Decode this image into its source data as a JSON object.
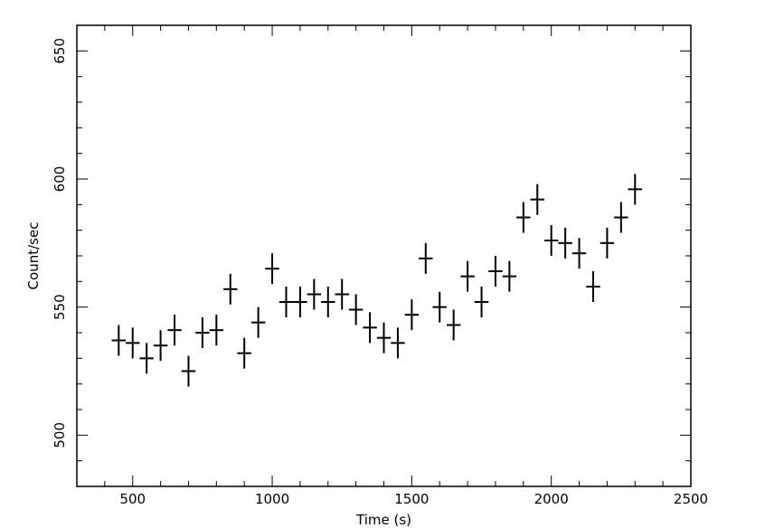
{
  "chart_data": {
    "type": "scatter",
    "title": "",
    "xlabel": "Time (s)",
    "ylabel": "Count/sec",
    "xlim": [
      300,
      2500
    ],
    "ylim": [
      480,
      660
    ],
    "x_ticks": [
      500,
      1000,
      1500,
      2000,
      2500
    ],
    "x_tick_labels": [
      "500",
      "1000",
      "1500",
      "2000",
      "2500"
    ],
    "y_ticks": [
      500,
      550,
      600,
      650
    ],
    "y_tick_labels": [
      "500",
      "550",
      "600",
      "650"
    ],
    "grid": false,
    "x_error": 25,
    "points": [
      {
        "x": 450,
        "y": 537,
        "yerr": 6
      },
      {
        "x": 500,
        "y": 536,
        "yerr": 6
      },
      {
        "x": 550,
        "y": 530,
        "yerr": 6
      },
      {
        "x": 600,
        "y": 535,
        "yerr": 6
      },
      {
        "x": 650,
        "y": 541,
        "yerr": 6
      },
      {
        "x": 700,
        "y": 525,
        "yerr": 6
      },
      {
        "x": 750,
        "y": 540,
        "yerr": 6
      },
      {
        "x": 800,
        "y": 541,
        "yerr": 6
      },
      {
        "x": 850,
        "y": 557,
        "yerr": 6
      },
      {
        "x": 900,
        "y": 532,
        "yerr": 6
      },
      {
        "x": 950,
        "y": 544,
        "yerr": 6
      },
      {
        "x": 1000,
        "y": 565,
        "yerr": 6
      },
      {
        "x": 1050,
        "y": 552,
        "yerr": 6
      },
      {
        "x": 1100,
        "y": 552,
        "yerr": 6
      },
      {
        "x": 1150,
        "y": 555,
        "yerr": 6
      },
      {
        "x": 1200,
        "y": 552,
        "yerr": 6
      },
      {
        "x": 1250,
        "y": 555,
        "yerr": 6
      },
      {
        "x": 1300,
        "y": 549,
        "yerr": 6
      },
      {
        "x": 1350,
        "y": 542,
        "yerr": 6
      },
      {
        "x": 1400,
        "y": 538,
        "yerr": 6
      },
      {
        "x": 1450,
        "y": 536,
        "yerr": 6
      },
      {
        "x": 1500,
        "y": 547,
        "yerr": 6
      },
      {
        "x": 1550,
        "y": 569,
        "yerr": 6
      },
      {
        "x": 1600,
        "y": 550,
        "yerr": 6
      },
      {
        "x": 1650,
        "y": 543,
        "yerr": 6
      },
      {
        "x": 1700,
        "y": 562,
        "yerr": 6
      },
      {
        "x": 1750,
        "y": 552,
        "yerr": 6
      },
      {
        "x": 1800,
        "y": 564,
        "yerr": 6
      },
      {
        "x": 1850,
        "y": 562,
        "yerr": 6
      },
      {
        "x": 1900,
        "y": 585,
        "yerr": 6
      },
      {
        "x": 1950,
        "y": 592,
        "yerr": 6
      },
      {
        "x": 2000,
        "y": 576,
        "yerr": 6
      },
      {
        "x": 2050,
        "y": 575,
        "yerr": 6
      },
      {
        "x": 2100,
        "y": 571,
        "yerr": 6
      },
      {
        "x": 2150,
        "y": 558,
        "yerr": 6
      },
      {
        "x": 2200,
        "y": 575,
        "yerr": 6
      },
      {
        "x": 2250,
        "y": 585,
        "yerr": 6
      },
      {
        "x": 2300,
        "y": 596,
        "yerr": 6
      }
    ],
    "colors": {
      "marker": "#000000",
      "axes": "#000000",
      "background": "#ffffff"
    }
  }
}
